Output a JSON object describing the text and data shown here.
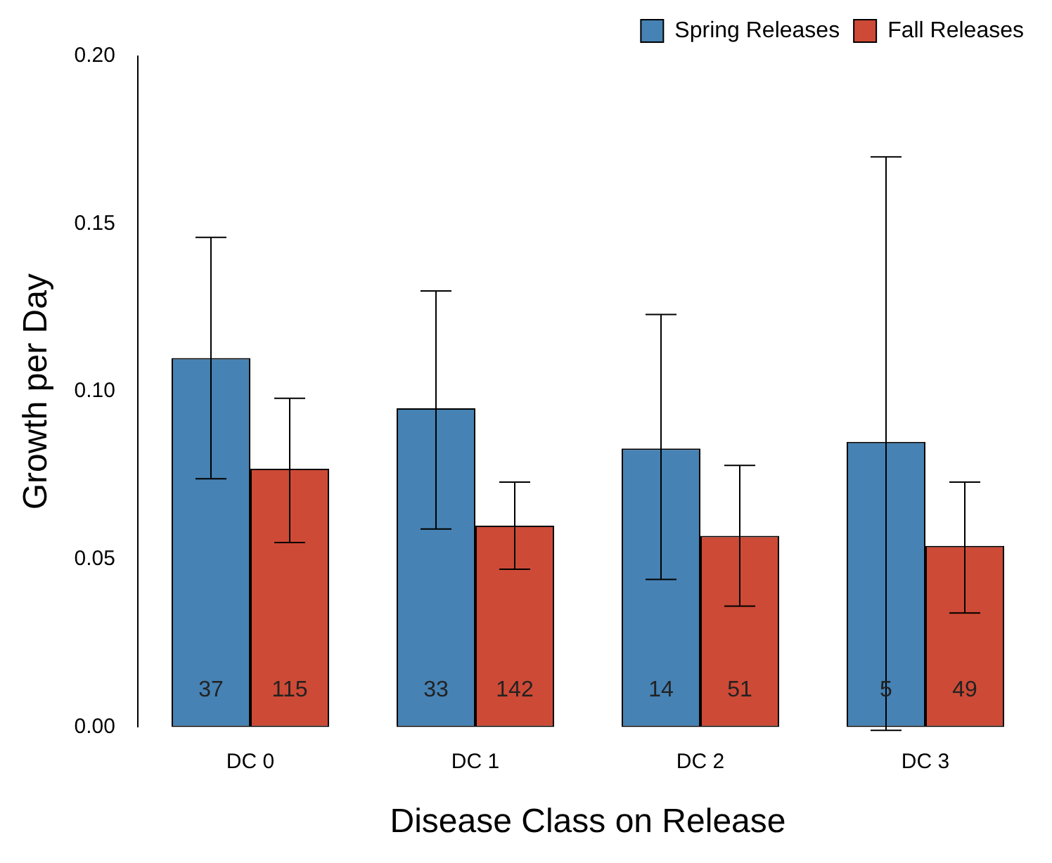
{
  "chart_data": {
    "type": "bar",
    "xlabel": "Disease Class on Release",
    "ylabel": "Growth per Day",
    "categories": [
      "DC 0",
      "DC 1",
      "DC 2",
      "DC 3"
    ],
    "series": [
      {
        "name": "Spring Releases",
        "color": "#4682b4",
        "values": [
          0.11,
          0.095,
          0.083,
          0.085
        ],
        "errors": [
          [
            0.074,
            0.146
          ],
          [
            0.059,
            0.13
          ],
          [
            0.044,
            0.123
          ],
          [
            -0.001,
            0.17
          ]
        ]
      },
      {
        "name": "Fall Releases",
        "color": "#cd4a36",
        "values": [
          0.077,
          0.06,
          0.057,
          0.054
        ],
        "errors": [
          [
            0.055,
            0.098
          ],
          [
            0.047,
            0.073
          ],
          [
            0.036,
            0.078
          ],
          [
            0.034,
            0.073
          ]
        ]
      }
    ],
    "ylim": [
      0,
      0.2
    ],
    "yticks": [
      {
        "value": 0,
        "label": "0.00"
      },
      {
        "value": 0.05,
        "label": "0.05"
      },
      {
        "value": 0.1,
        "label": "0.10"
      },
      {
        "value": 0.15,
        "label": "0.15"
      },
      {
        "value": 0.2,
        "label": "0.20"
      }
    ],
    "annotations": [
      "37",
      "115",
      "33",
      "142",
      "14",
      "51",
      "5",
      "49"
    ],
    "grid": false,
    "legend": "top right"
  }
}
